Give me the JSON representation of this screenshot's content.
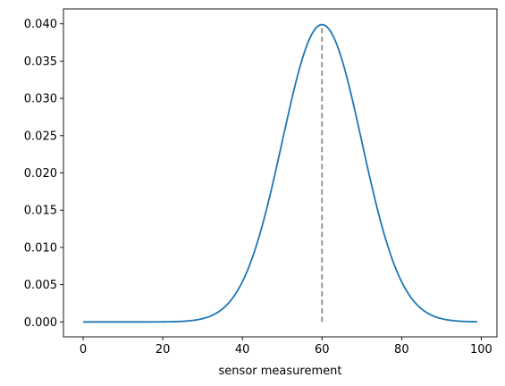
{
  "chart_data": {
    "type": "line",
    "title": "",
    "xlabel": "sensor measurement",
    "ylabel": "",
    "xlim": [
      -4.95,
      103.95
    ],
    "ylim": [
      -0.002,
      0.042
    ],
    "xticks": [
      0,
      20,
      40,
      60,
      80,
      100
    ],
    "xtick_labels": [
      "0",
      "20",
      "40",
      "60",
      "80",
      "100"
    ],
    "yticks": [
      0.0,
      0.005,
      0.01,
      0.015,
      0.02,
      0.025,
      0.03,
      0.035,
      0.04
    ],
    "ytick_labels": [
      "0.000",
      "0.005",
      "0.010",
      "0.015",
      "0.020",
      "0.025",
      "0.030",
      "0.035",
      "0.040"
    ],
    "grid": false,
    "legend": "none",
    "series": [
      {
        "color": "#1f77b4",
        "distribution": "normal",
        "mean": 60,
        "std": 10,
        "x_range": [
          0,
          99
        ]
      }
    ],
    "vlines": [
      {
        "x": 60,
        "y_from": 0,
        "y_to": 0.0399,
        "color": "#808080",
        "style": "dashed"
      }
    ]
  }
}
